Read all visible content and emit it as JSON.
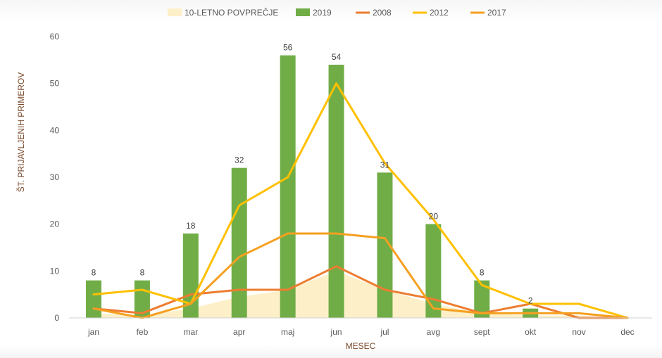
{
  "chart_data": {
    "type": "bar",
    "categories": [
      "jan",
      "feb",
      "mar",
      "apr",
      "maj",
      "jun",
      "jul",
      "avg",
      "sept",
      "okt",
      "nov",
      "dec"
    ],
    "xlabel": "MESEC",
    "ylabel": "ŠT. PRIJAVLJENIH PRIMEROV",
    "ylim": [
      0,
      60
    ],
    "yticks": [
      0,
      10,
      20,
      30,
      40,
      50,
      60
    ],
    "grid": false,
    "legend_position": "top",
    "series": [
      {
        "name": "10-LETNO POVPREČJE",
        "kind": "area",
        "color": "#fdf0c8",
        "values": [
          1,
          0.5,
          2,
          4.5,
          6,
          10,
          6,
          3,
          1,
          0.5,
          0.5,
          0
        ]
      },
      {
        "name": "2019",
        "kind": "bar",
        "color": "#70ad47",
        "show_labels": true,
        "values": [
          8,
          8,
          18,
          32,
          56,
          54,
          31,
          20,
          8,
          2,
          0,
          0
        ]
      },
      {
        "name": "2008",
        "kind": "line",
        "color": "#ed7d31",
        "values": [
          2,
          1,
          5,
          6,
          6,
          11,
          6,
          4,
          1,
          3,
          0,
          0
        ]
      },
      {
        "name": "2012",
        "kind": "line",
        "color": "#ffc000",
        "values": [
          5,
          6,
          3,
          24,
          30,
          50,
          33,
          21,
          7,
          3,
          3,
          0
        ]
      },
      {
        "name": "2017",
        "kind": "line",
        "color": "#f5a020",
        "values": [
          2,
          0,
          3,
          13,
          18,
          18,
          17,
          2,
          1,
          1,
          1,
          0
        ]
      }
    ]
  }
}
